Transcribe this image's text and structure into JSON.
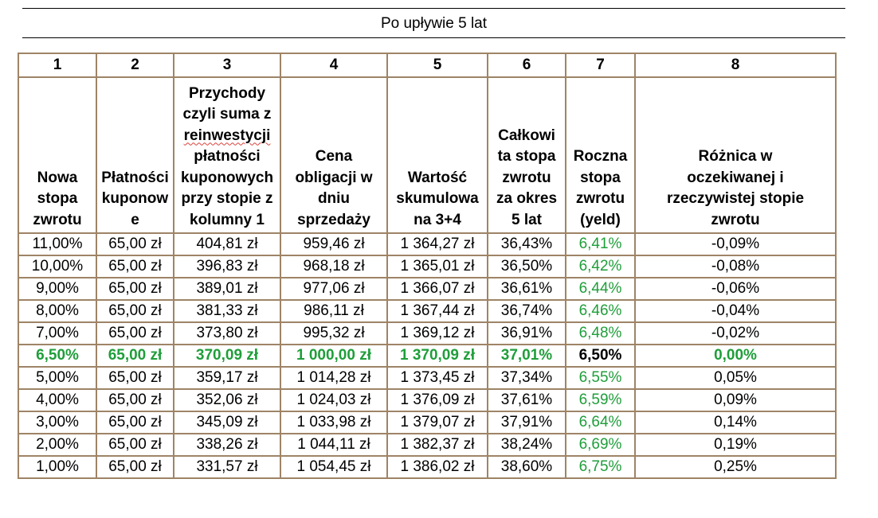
{
  "caption": "Po upływie 5 lat",
  "column_numbers": [
    "1",
    "2",
    "3",
    "4",
    "5",
    "6",
    "7",
    "8"
  ],
  "column_headers": [
    [
      "Nowa",
      "stopa",
      "zwrotu"
    ],
    [
      "Płatności",
      "kuponow",
      "e"
    ],
    [
      "Przychody",
      "czyli suma z",
      "reinwestycji",
      "płatności",
      "kuponowych",
      "przy stopie z",
      "kolumny 1"
    ],
    [
      "Cena",
      "obligacji w",
      "dniu",
      "sprzedaży"
    ],
    [
      "Wartość",
      "skumulowa",
      "na 3+4"
    ],
    [
      "Całkowi",
      "ta stopa",
      "zwrotu",
      "za okres",
      "5 lat"
    ],
    [
      "Roczna",
      "stopa",
      "zwrotu",
      "(yeld)"
    ],
    [
      "Różnica w",
      "oczekiwanej i",
      "rzeczywistej stopie",
      "zwrotu"
    ]
  ],
  "rows": [
    [
      "11,00%",
      "65,00 zł",
      "404,81 zł",
      "959,46 zł",
      "1 364,27 zł",
      "36,43%",
      "6,41%",
      "-0,09%"
    ],
    [
      "10,00%",
      "65,00 zł",
      "396,83 zł",
      "968,18 zł",
      "1 365,01 zł",
      "36,50%",
      "6,42%",
      "-0,08%"
    ],
    [
      "9,00%",
      "65,00 zł",
      "389,01 zł",
      "977,06 zł",
      "1 366,07 zł",
      "36,61%",
      "6,44%",
      "-0,06%"
    ],
    [
      "8,00%",
      "65,00 zł",
      "381,33 zł",
      "986,11 zł",
      "1 367,44 zł",
      "36,74%",
      "6,46%",
      "-0,04%"
    ],
    [
      "7,00%",
      "65,00 zł",
      "373,80 zł",
      "995,32 zł",
      "1 369,12 zł",
      "36,91%",
      "6,48%",
      "-0,02%"
    ],
    [
      "6,50%",
      "65,00 zł",
      "370,09 zł",
      "1 000,00 zł",
      "1 370,09 zł",
      "37,01%",
      "6,50%",
      "0,00%"
    ],
    [
      "5,00%",
      "65,00 zł",
      "359,17 zł",
      "1 014,28 zł",
      "1 373,45 zł",
      "37,34%",
      "6,55%",
      "0,05%"
    ],
    [
      "4,00%",
      "65,00 zł",
      "352,06 zł",
      "1 024,03 zł",
      "1 376,09 zł",
      "37,61%",
      "6,59%",
      "0,09%"
    ],
    [
      "3,00%",
      "65,00 zł",
      "345,09 zł",
      "1 033,98 zł",
      "1 379,07 zł",
      "37,91%",
      "6,64%",
      "0,14%"
    ],
    [
      "2,00%",
      "65,00 zł",
      "338,26 zł",
      "1 044,11 zł",
      "1 382,37 zł",
      "38,24%",
      "6,69%",
      "0,19%"
    ],
    [
      "1,00%",
      "65,00 zł",
      "331,57 zł",
      "1 054,45 zł",
      "1 386,02 zł",
      "38,60%",
      "6,75%",
      "0,25%"
    ]
  ],
  "highlight_row_index": 5,
  "green_column_index": 6,
  "colors": {
    "green": "#1f9e3a",
    "border": "#9e8466"
  }
}
